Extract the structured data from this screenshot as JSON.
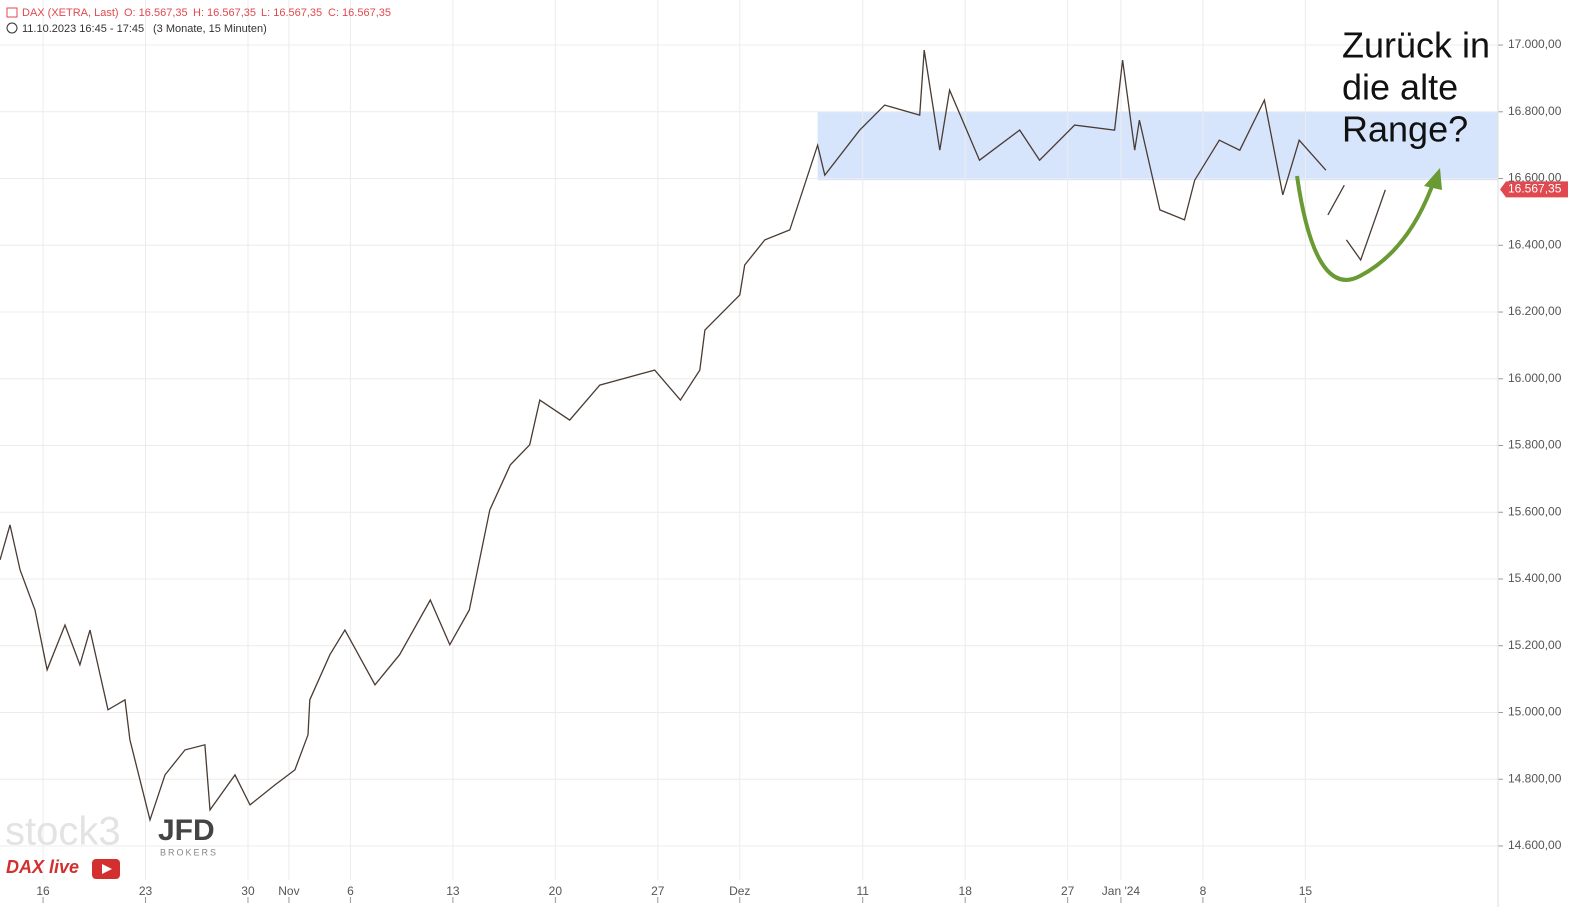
{
  "chart_data": {
    "type": "line",
    "header": {
      "instrument": "DAX (XETRA, Last)",
      "ohlc": [
        "O: 16.567,35",
        "H: 16.567,35",
        "L: 16.567,35",
        "C: 16.567,35"
      ],
      "period": "11.10.2023 16:45 - 17:45",
      "range": "(3 Monate, 15 Minuten)"
    },
    "annotation": [
      "Zurück in",
      "die alte",
      "Range?"
    ],
    "watermarks": {
      "brand": "stock3",
      "broker": "JFD",
      "broker_sub": "BROKERS",
      "show": "DAX live"
    },
    "x": [
      -2.1,
      -1.61,
      -1.12,
      -0.39,
      0.2,
      1.07,
      1.8,
      2.29,
      3.17,
      4.0,
      4.24,
      5.22,
      5.95,
      6.93,
      7.9,
      8.15,
      9.37,
      10.1,
      11.32,
      12.29,
      12.93,
      13.02,
      14.0,
      14.73,
      16.2,
      17.4,
      18.9,
      19.85,
      20.8,
      21.8,
      22.8,
      23.75,
      24.24,
      25.7,
      27.17,
      29.85,
      31.1,
      32.05,
      32.3,
      34.0,
      34.24,
      35.22,
      36.44,
      37.8,
      38.15,
      39.85,
      41.07,
      42.78,
      43.0,
      43.76,
      44.24,
      45.7,
      47.66,
      48.63,
      50.34,
      52.29,
      52.68,
      53.27,
      53.5,
      54.5,
      55.7,
      56.2,
      57.4,
      58.4,
      59.6,
      60.5,
      61.3,
      62.6,
      62.65,
      62.7,
      63.5,
      63.55,
      63.6,
      64.3,
      65.5
    ],
    "series": [
      {
        "name": "DAX",
        "color": "#4a3b33",
        "values": [
          15457,
          15562,
          15427,
          15307,
          15128,
          15262,
          15143,
          15247,
          15008,
          15038,
          14918,
          14678,
          14813,
          14888,
          14903,
          14708,
          14813,
          14723,
          14783,
          14828,
          14933,
          15038,
          15173,
          15247,
          15083,
          15173,
          15337,
          15203,
          15307,
          15607,
          15742,
          15802,
          15936,
          15876,
          15981,
          16026,
          15936,
          16026,
          16146,
          16251,
          16341,
          16416,
          16446,
          16700,
          16610,
          16745,
          16820,
          16790,
          16985,
          16685,
          16865,
          16655,
          16745,
          16655,
          16760,
          16745,
          16955,
          16685,
          16775,
          16506,
          16476,
          16595,
          16715,
          16685,
          16835,
          16551,
          16715,
          16625,
          null,
          16491,
          16580,
          null,
          16416,
          16356,
          16566
        ]
      }
    ],
    "last_price": {
      "value": 16567.35,
      "label": "16.567,35",
      "color": "#e0494f"
    },
    "range_band": {
      "y": [
        16595,
        16800
      ],
      "x_start": 37.8,
      "color": "#cfe0fb"
    },
    "xlim": [
      -2.1,
      71.0
    ],
    "xticks": [
      {
        "value": 0,
        "label": "16"
      },
      {
        "value": 5,
        "label": "23"
      },
      {
        "value": 10,
        "label": "30"
      },
      {
        "value": 12,
        "label": "Nov"
      },
      {
        "value": 15,
        "label": "6"
      },
      {
        "value": 20,
        "label": "13"
      },
      {
        "value": 25,
        "label": "20"
      },
      {
        "value": 30,
        "label": "27"
      },
      {
        "value": 34,
        "label": "Dez"
      },
      {
        "value": 40,
        "label": "11"
      },
      {
        "value": 45,
        "label": "18"
      },
      {
        "value": 50,
        "label": "27"
      },
      {
        "value": 52.6,
        "label": "Jan '24"
      },
      {
        "value": 56.6,
        "label": "8"
      },
      {
        "value": 61.6,
        "label": "15"
      }
    ],
    "ylim": [
      14498,
      17135
    ],
    "yticks": [
      {
        "value": 14600,
        "label": "14.600,00"
      },
      {
        "value": 14800,
        "label": "14.800,00"
      },
      {
        "value": 15000,
        "label": "15.000,00"
      },
      {
        "value": 15200,
        "label": "15.200,00"
      },
      {
        "value": 15400,
        "label": "15.400,00"
      },
      {
        "value": 15600,
        "label": "15.600,00"
      },
      {
        "value": 15800,
        "label": "15.800,00"
      },
      {
        "value": 16000,
        "label": "16.000,00"
      },
      {
        "value": 16200,
        "label": "16.200,00"
      },
      {
        "value": 16400,
        "label": "16.400,00"
      },
      {
        "value": 16600,
        "label": "16.600,00"
      },
      {
        "value": 16800,
        "label": "16.800,00"
      },
      {
        "value": 17000,
        "label": "17.000,00"
      }
    ],
    "grid": true
  }
}
